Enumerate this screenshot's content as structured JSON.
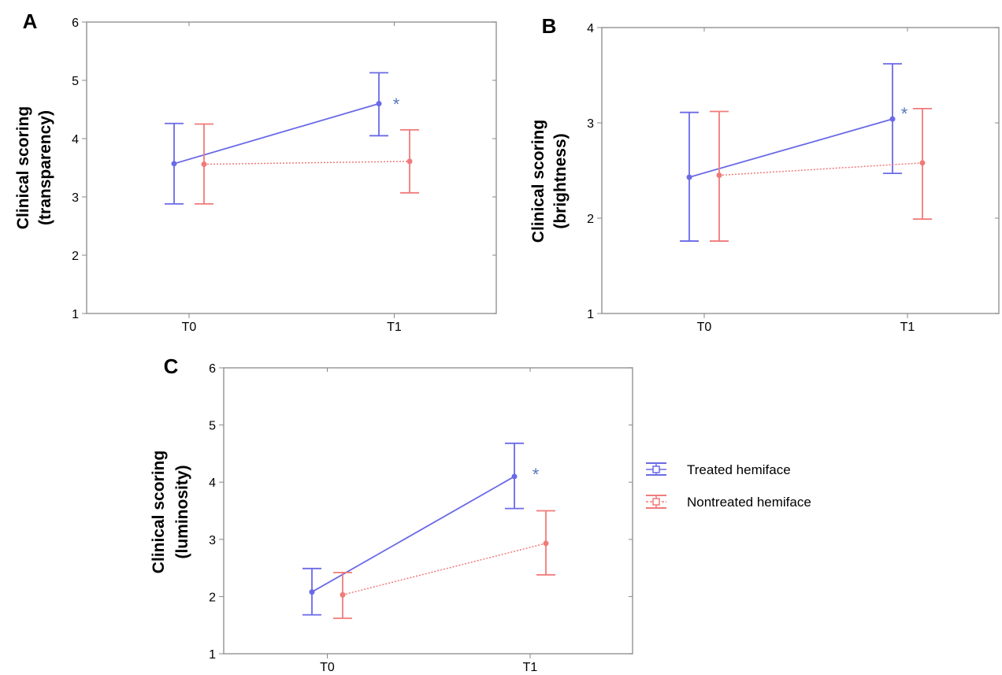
{
  "colors": {
    "treated": "#6a6ae8",
    "nontreated": "#f07a7a",
    "asterisk": "#5577bb"
  },
  "legend": {
    "treated_label": "Treated hemiface",
    "nontreated_label": "Nontreated hemiface"
  },
  "chart_data": [
    {
      "type": "line",
      "panel": "A",
      "ylabel_line1": "Clinical scoring",
      "ylabel_line2": "(transparency)",
      "categories": [
        "T0",
        "T1"
      ],
      "ylim": [
        1,
        6
      ],
      "yticks": [
        "1",
        "2",
        "3",
        "4",
        "5",
        "6"
      ],
      "series": [
        {
          "name": "Treated hemiface",
          "values": [
            3.57,
            4.6
          ],
          "lower": [
            2.88,
            4.05
          ],
          "upper": [
            4.26,
            5.13
          ]
        },
        {
          "name": "Nontreated hemiface",
          "values": [
            3.56,
            3.61
          ],
          "lower": [
            2.88,
            3.07
          ],
          "upper": [
            4.25,
            4.15
          ]
        }
      ],
      "significance": "*"
    },
    {
      "type": "line",
      "panel": "B",
      "ylabel_line1": "Clinical scoring",
      "ylabel_line2": "(brightness)",
      "categories": [
        "T0",
        "T1"
      ],
      "ylim": [
        1,
        4
      ],
      "yticks": [
        "1",
        "2",
        "3",
        "4"
      ],
      "series": [
        {
          "name": "Treated hemiface",
          "values": [
            2.43,
            3.04
          ],
          "lower": [
            1.76,
            2.47
          ],
          "upper": [
            3.11,
            3.62
          ]
        },
        {
          "name": "Nontreated hemiface",
          "values": [
            2.45,
            2.58
          ],
          "lower": [
            1.76,
            1.99
          ],
          "upper": [
            3.12,
            3.15
          ]
        }
      ],
      "significance": "*"
    },
    {
      "type": "line",
      "panel": "C",
      "ylabel_line1": "Clinical scoring",
      "ylabel_line2": "(luminosity)",
      "categories": [
        "T0",
        "T1"
      ],
      "ylim": [
        1,
        6
      ],
      "yticks": [
        "1",
        "2",
        "3",
        "4",
        "5",
        "6"
      ],
      "series": [
        {
          "name": "Treated hemiface",
          "values": [
            2.08,
            4.1
          ],
          "lower": [
            1.68,
            3.54
          ],
          "upper": [
            2.49,
            4.68
          ]
        },
        {
          "name": "Nontreated hemiface",
          "values": [
            2.03,
            2.93
          ],
          "lower": [
            1.62,
            2.38
          ],
          "upper": [
            2.42,
            3.5
          ]
        }
      ],
      "significance": "*"
    }
  ]
}
